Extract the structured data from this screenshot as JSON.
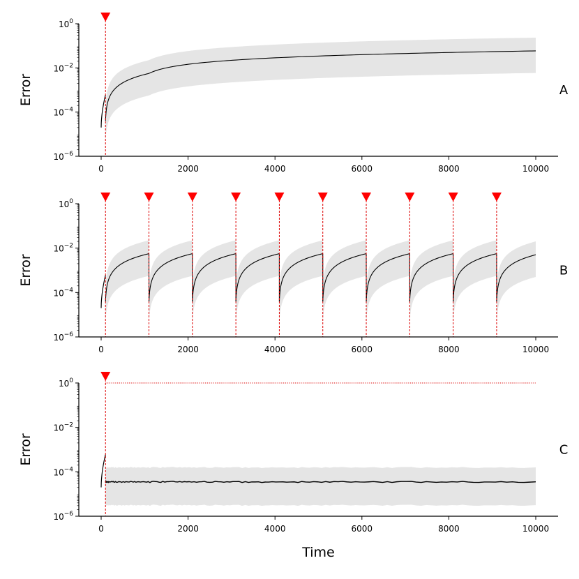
{
  "colors": {
    "band": "#e5e5e5",
    "line": "#000000",
    "marker": "#ff0000",
    "reset_line": "#dd0000"
  },
  "chart_data": [
    {
      "type": "line",
      "panel_label": "A",
      "xlabel": "",
      "ylabel": "Error",
      "xlim": [
        -600,
        10500
      ],
      "x_ticks": [
        0,
        2000,
        4000,
        6000,
        8000,
        10000
      ],
      "y_scale": "log",
      "ylim_exp": [
        -6,
        0
      ],
      "y_ticks_exp": [
        -6,
        -4,
        -2,
        0
      ],
      "y_tick_base": "10",
      "y_tick_sups": [
        "−6",
        "−4",
        "−2",
        "0"
      ],
      "x_tick_labels": [
        "0",
        "2000",
        "4000",
        "6000",
        "8000",
        "10000"
      ],
      "reset_times": [
        100
      ],
      "warmup": {
        "start": 0,
        "end": 100,
        "start_value": 2e-05,
        "end_value": 0.0006
      },
      "mean_after_reset": {
        "mode": "drift",
        "log10_start": -4.4,
        "log10_at_t1000": -2.25,
        "log10_end": -1.23
      },
      "band_log10_offset": {
        "lower": -1.0,
        "upper": 0.6
      },
      "end_time": 10000,
      "threshold": null
    },
    {
      "type": "line",
      "panel_label": "B",
      "xlabel": "",
      "ylabel": "Error",
      "xlim": [
        -600,
        10500
      ],
      "x_ticks": [
        0,
        2000,
        4000,
        6000,
        8000,
        10000
      ],
      "y_scale": "log",
      "ylim_exp": [
        -6,
        0
      ],
      "y_ticks_exp": [
        -6,
        -4,
        -2,
        0
      ],
      "y_tick_base": "10",
      "y_tick_sups": [
        "−6",
        "−4",
        "−2",
        "0"
      ],
      "x_tick_labels": [
        "0",
        "2000",
        "4000",
        "6000",
        "8000",
        "10000"
      ],
      "reset_times": [
        100,
        1100,
        2100,
        3100,
        4100,
        5100,
        6100,
        7100,
        8100,
        9100
      ],
      "warmup": {
        "start": 0,
        "end": 100,
        "start_value": 2e-05,
        "end_value": 0.0006
      },
      "mean_after_reset": {
        "mode": "drift",
        "log10_start": -4.4,
        "log10_at_t1000": -2.25,
        "log10_end": -2.25
      },
      "band_log10_offset": {
        "lower": -1.0,
        "upper": 0.6
      },
      "end_time": 10000,
      "threshold": null
    },
    {
      "type": "line",
      "panel_label": "C",
      "xlabel": "Time",
      "ylabel": "Error",
      "xlim": [
        -600,
        10500
      ],
      "x_ticks": [
        0,
        2000,
        4000,
        6000,
        8000,
        10000
      ],
      "y_scale": "log",
      "ylim_exp": [
        -6,
        0
      ],
      "y_ticks_exp": [
        -6,
        -4,
        -2,
        0
      ],
      "y_tick_base": "10",
      "y_tick_sups": [
        "−6",
        "−4",
        "−2",
        "0"
      ],
      "x_tick_labels": [
        "0",
        "2000",
        "4000",
        "6000",
        "8000",
        "10000"
      ],
      "reset_times": [
        100
      ],
      "warmup": {
        "start": 0,
        "end": 100,
        "start_value": 2e-05,
        "end_value": 0.0006
      },
      "mean_after_reset": {
        "mode": "flat",
        "value": 3.5e-05
      },
      "band_log10_offset": {
        "lower": -1.05,
        "upper": 0.65
      },
      "end_time": 10000,
      "threshold": 1.0
    }
  ]
}
